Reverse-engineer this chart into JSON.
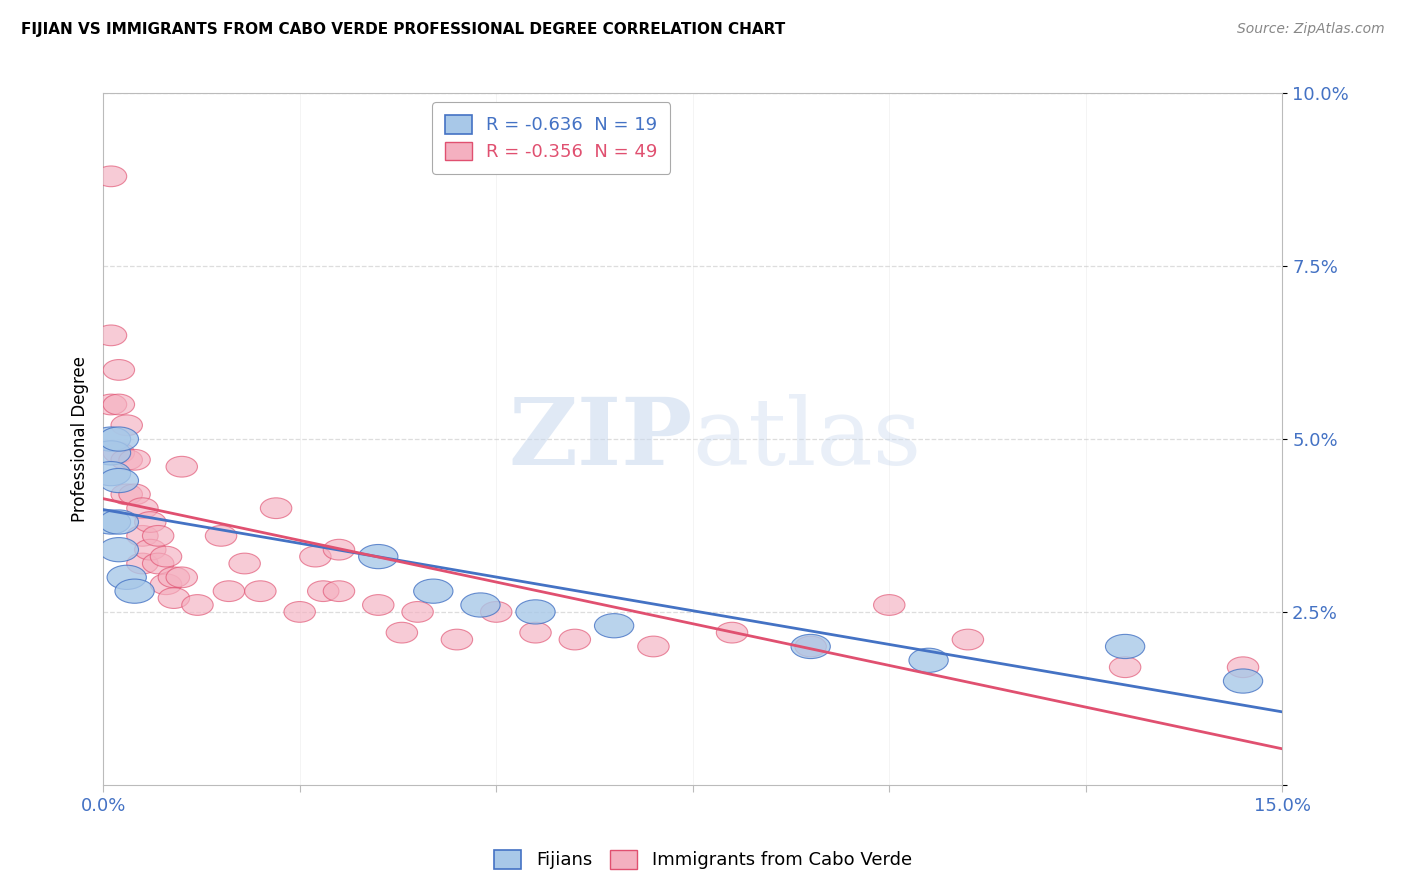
{
  "title": "FIJIAN VS IMMIGRANTS FROM CABO VERDE PROFESSIONAL DEGREE CORRELATION CHART",
  "source": "Source: ZipAtlas.com",
  "ylabel": "Professional Degree",
  "legend1_label": "Fijians",
  "legend2_label": "Immigrants from Cabo Verde",
  "R1": -0.636,
  "N1": 19,
  "R2": -0.356,
  "N2": 49,
  "color_fijian": "#a8c8e8",
  "color_cabo": "#f4b0c0",
  "color_fijian_line": "#4472c4",
  "color_cabo_line": "#e05070",
  "fijian_x": [
    0.001,
    0.001,
    0.001,
    0.001,
    0.002,
    0.002,
    0.002,
    0.002,
    0.003,
    0.004,
    0.035,
    0.042,
    0.048,
    0.055,
    0.065,
    0.09,
    0.105,
    0.13,
    0.145
  ],
  "fijian_y": [
    0.05,
    0.048,
    0.045,
    0.038,
    0.05,
    0.044,
    0.038,
    0.034,
    0.03,
    0.028,
    0.033,
    0.028,
    0.026,
    0.025,
    0.023,
    0.02,
    0.018,
    0.02,
    0.015
  ],
  "cabo_x": [
    0.001,
    0.001,
    0.001,
    0.002,
    0.002,
    0.002,
    0.003,
    0.003,
    0.003,
    0.004,
    0.004,
    0.005,
    0.005,
    0.005,
    0.006,
    0.006,
    0.007,
    0.007,
    0.008,
    0.008,
    0.009,
    0.009,
    0.01,
    0.01,
    0.012,
    0.015,
    0.016,
    0.018,
    0.02,
    0.022,
    0.025,
    0.027,
    0.028,
    0.03,
    0.03,
    0.035,
    0.038,
    0.04,
    0.045,
    0.05,
    0.055,
    0.06,
    0.07,
    0.08,
    0.09,
    0.1,
    0.11,
    0.13,
    0.145
  ],
  "cabo_y": [
    0.088,
    0.065,
    0.055,
    0.06,
    0.055,
    0.048,
    0.052,
    0.047,
    0.042,
    0.047,
    0.042,
    0.04,
    0.036,
    0.032,
    0.038,
    0.034,
    0.036,
    0.032,
    0.033,
    0.029,
    0.03,
    0.027,
    0.046,
    0.03,
    0.026,
    0.036,
    0.028,
    0.032,
    0.028,
    0.04,
    0.025,
    0.033,
    0.028,
    0.034,
    0.028,
    0.026,
    0.022,
    0.025,
    0.021,
    0.025,
    0.022,
    0.021,
    0.02,
    0.022,
    0.02,
    0.026,
    0.021,
    0.017,
    0.017
  ],
  "xmin": 0.0,
  "xmax": 0.15,
  "ymin": 0.0,
  "ymax": 0.1,
  "yticks": [
    0.0,
    0.025,
    0.05,
    0.075,
    0.1
  ],
  "ytick_labels": [
    "",
    "2.5%",
    "5.0%",
    "7.5%",
    "10.0%"
  ],
  "xticks": [
    0.0,
    0.025,
    0.05,
    0.075,
    0.1,
    0.125,
    0.15
  ],
  "background_color": "#ffffff",
  "grid_color": "#dddddd"
}
